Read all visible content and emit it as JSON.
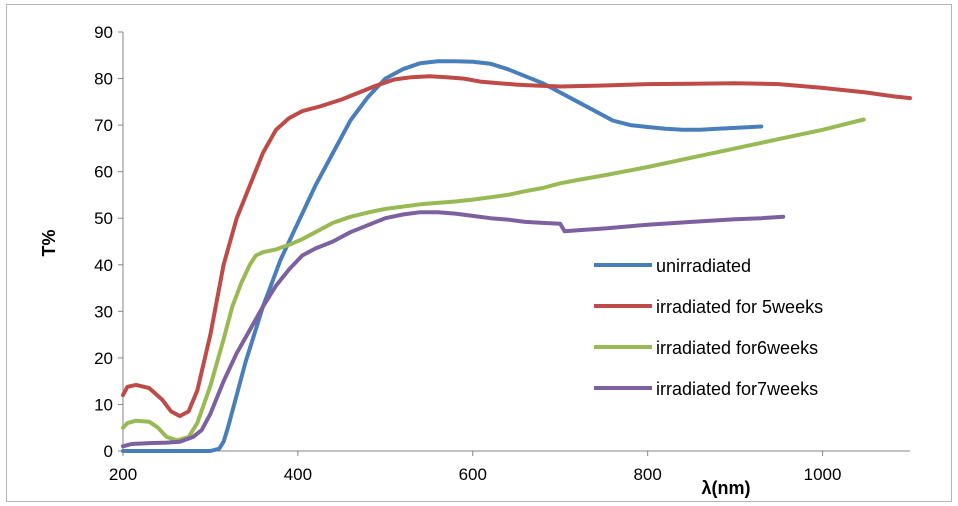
{
  "chart_data": {
    "type": "line",
    "title": "",
    "xlabel": "λ(nm)",
    "ylabel": "T%",
    "xlim": [
      200,
      1100
    ],
    "ylim": [
      0,
      90
    ],
    "xticks": [
      200,
      400,
      600,
      800,
      1000
    ],
    "yticks": [
      0,
      10,
      20,
      30,
      40,
      50,
      60,
      70,
      80,
      90
    ],
    "grid": false,
    "legend": "right-center",
    "series": [
      {
        "name": "unirradiated",
        "color": "#4a7ebb",
        "points": [
          [
            200,
            0
          ],
          [
            250,
            0
          ],
          [
            300,
            0
          ],
          [
            310,
            0.5
          ],
          [
            315,
            2
          ],
          [
            320,
            5
          ],
          [
            330,
            12
          ],
          [
            340,
            19
          ],
          [
            350,
            25
          ],
          [
            360,
            31
          ],
          [
            370,
            36
          ],
          [
            380,
            41
          ],
          [
            390,
            45
          ],
          [
            400,
            49
          ],
          [
            420,
            57
          ],
          [
            440,
            64
          ],
          [
            460,
            71
          ],
          [
            480,
            76
          ],
          [
            500,
            80
          ],
          [
            520,
            82
          ],
          [
            540,
            83.3
          ],
          [
            560,
            83.7
          ],
          [
            580,
            83.7
          ],
          [
            600,
            83.6
          ],
          [
            620,
            83.2
          ],
          [
            640,
            82
          ],
          [
            660,
            80.5
          ],
          [
            680,
            79
          ],
          [
            700,
            77
          ],
          [
            720,
            75
          ],
          [
            740,
            73
          ],
          [
            760,
            71
          ],
          [
            780,
            70
          ],
          [
            800,
            69.6
          ],
          [
            820,
            69.2
          ],
          [
            840,
            69
          ],
          [
            860,
            69
          ],
          [
            880,
            69.2
          ],
          [
            900,
            69.4
          ],
          [
            930,
            69.7
          ]
        ]
      },
      {
        "name": "irradiated for 5weeks",
        "color": "#be4b48",
        "points": [
          [
            200,
            12
          ],
          [
            205,
            13.8
          ],
          [
            215,
            14.2
          ],
          [
            230,
            13.5
          ],
          [
            245,
            11
          ],
          [
            255,
            8.5
          ],
          [
            265,
            7.5
          ],
          [
            275,
            8.5
          ],
          [
            285,
            13
          ],
          [
            300,
            25
          ],
          [
            315,
            40
          ],
          [
            330,
            50
          ],
          [
            345,
            57
          ],
          [
            360,
            64
          ],
          [
            375,
            69
          ],
          [
            390,
            71.5
          ],
          [
            405,
            73
          ],
          [
            425,
            74
          ],
          [
            450,
            75.5
          ],
          [
            470,
            77
          ],
          [
            490,
            78.5
          ],
          [
            510,
            79.8
          ],
          [
            530,
            80.3
          ],
          [
            550,
            80.5
          ],
          [
            570,
            80.3
          ],
          [
            590,
            80
          ],
          [
            610,
            79.3
          ],
          [
            630,
            79
          ],
          [
            650,
            78.7
          ],
          [
            670,
            78.5
          ],
          [
            700,
            78.3
          ],
          [
            750,
            78.5
          ],
          [
            800,
            78.8
          ],
          [
            850,
            78.9
          ],
          [
            900,
            79
          ],
          [
            950,
            78.8
          ],
          [
            1000,
            78
          ],
          [
            1050,
            77
          ],
          [
            1080,
            76.2
          ],
          [
            1100,
            75.8
          ]
        ]
      },
      {
        "name": "irradiated for6weeks",
        "color": "#98b954",
        "points": [
          [
            200,
            5
          ],
          [
            205,
            6
          ],
          [
            215,
            6.5
          ],
          [
            230,
            6.3
          ],
          [
            240,
            5
          ],
          [
            250,
            3
          ],
          [
            262,
            2.3
          ],
          [
            275,
            3
          ],
          [
            285,
            6
          ],
          [
            300,
            14
          ],
          [
            315,
            24
          ],
          [
            325,
            31
          ],
          [
            335,
            36
          ],
          [
            345,
            40
          ],
          [
            352,
            42
          ],
          [
            360,
            42.7
          ],
          [
            375,
            43.3
          ],
          [
            390,
            44.3
          ],
          [
            405,
            45.5
          ],
          [
            420,
            47
          ],
          [
            440,
            49
          ],
          [
            460,
            50.3
          ],
          [
            480,
            51.2
          ],
          [
            500,
            52
          ],
          [
            520,
            52.5
          ],
          [
            540,
            53
          ],
          [
            560,
            53.3
          ],
          [
            580,
            53.6
          ],
          [
            600,
            54
          ],
          [
            620,
            54.5
          ],
          [
            640,
            55
          ],
          [
            660,
            55.8
          ],
          [
            680,
            56.5
          ],
          [
            700,
            57.5
          ],
          [
            720,
            58.2
          ],
          [
            750,
            59.2
          ],
          [
            800,
            61
          ],
          [
            850,
            63
          ],
          [
            900,
            65
          ],
          [
            950,
            67
          ],
          [
            1000,
            69
          ],
          [
            1047,
            71.2
          ]
        ]
      },
      {
        "name": "irradiated for7weeks",
        "color": "#7d60a0",
        "points": [
          [
            200,
            1
          ],
          [
            210,
            1.5
          ],
          [
            230,
            1.7
          ],
          [
            250,
            1.8
          ],
          [
            265,
            2
          ],
          [
            280,
            3
          ],
          [
            290,
            4.5
          ],
          [
            300,
            8
          ],
          [
            315,
            15
          ],
          [
            330,
            21
          ],
          [
            345,
            26
          ],
          [
            360,
            31
          ],
          [
            375,
            35.5
          ],
          [
            390,
            39
          ],
          [
            405,
            42
          ],
          [
            420,
            43.5
          ],
          [
            440,
            45
          ],
          [
            460,
            47
          ],
          [
            480,
            48.5
          ],
          [
            500,
            50
          ],
          [
            520,
            50.8
          ],
          [
            540,
            51.3
          ],
          [
            560,
            51.3
          ],
          [
            580,
            51
          ],
          [
            600,
            50.5
          ],
          [
            620,
            50
          ],
          [
            640,
            49.7
          ],
          [
            660,
            49.2
          ],
          [
            680,
            49
          ],
          [
            700,
            48.8
          ],
          [
            705,
            47.2
          ],
          [
            720,
            47.4
          ],
          [
            750,
            47.8
          ],
          [
            800,
            48.6
          ],
          [
            850,
            49.2
          ],
          [
            900,
            49.8
          ],
          [
            930,
            50
          ],
          [
            955,
            50.3
          ]
        ]
      }
    ]
  }
}
